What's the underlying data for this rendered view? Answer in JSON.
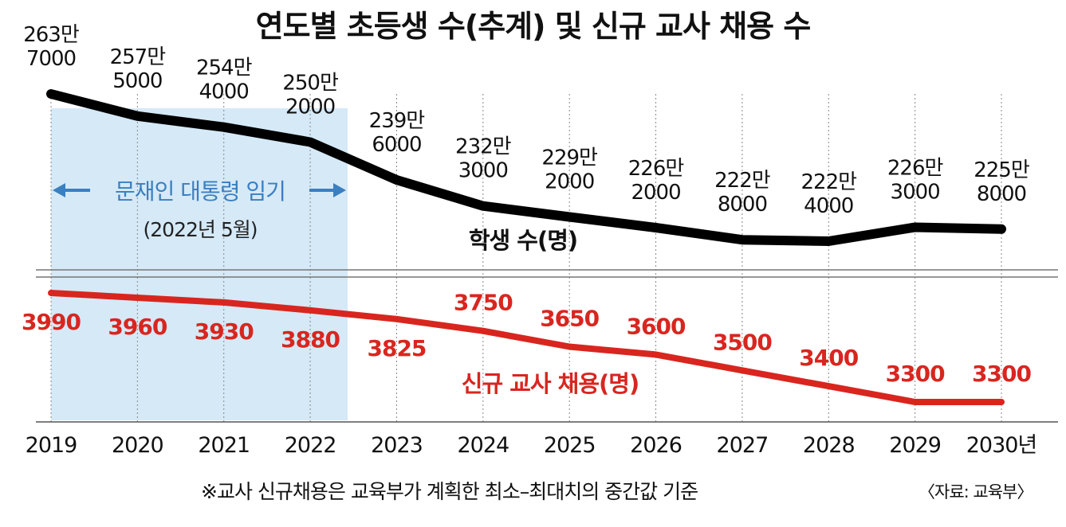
{
  "title": "연도별 초등생 수(추계) 및 신규 교사 채용 수",
  "x_unit_suffix": "년",
  "era": {
    "label": "문재인 대통령 임기",
    "sublabel": "(2022년 5월)",
    "fill_color": "#d5e9f7",
    "text_color": "#3a7fc0"
  },
  "footnote": "※교사 신규채용은 교육부가 계획한 최소–최대치의 중간값 기준",
  "source": "〈자료: 교육부〉",
  "chart_data": [
    {
      "type": "line",
      "title": "",
      "x": [
        "2019",
        "2020",
        "2021",
        "2022",
        "2023",
        "2024",
        "2025",
        "2026",
        "2027",
        "2028",
        "2029",
        "2030"
      ],
      "series": [
        {
          "name": "학생 수(명)",
          "color": "#000000",
          "values": [
            2637000,
            2575000,
            2544000,
            2502000,
            2396000,
            2323000,
            2292000,
            2262000,
            2228000,
            2224000,
            2263000,
            2258000
          ],
          "labels": [
            [
              "263만",
              "7000"
            ],
            [
              "257만",
              "5000"
            ],
            [
              "254만",
              "4000"
            ],
            [
              "250만",
              "2000"
            ],
            [
              "239만",
              "6000"
            ],
            [
              "232만",
              "3000"
            ],
            [
              "229만",
              "2000"
            ],
            [
              "226만",
              "2000"
            ],
            [
              "222만",
              "8000"
            ],
            [
              "222만",
              "4000"
            ],
            [
              "226만",
              "3000"
            ],
            [
              "225만",
              "8000"
            ]
          ]
        }
      ],
      "ylim": [
        2100000,
        2700000
      ],
      "legend": "in-plot"
    },
    {
      "type": "line",
      "title": "",
      "x": [
        "2019",
        "2020",
        "2021",
        "2022",
        "2023",
        "2024",
        "2025",
        "2026",
        "2027",
        "2028",
        "2029",
        "2030"
      ],
      "series": [
        {
          "name": "신규 교사 채용(명)",
          "color": "#d8261f",
          "values": [
            3990,
            3960,
            3930,
            3880,
            3825,
            3750,
            3650,
            3600,
            3500,
            3400,
            3300,
            3300
          ],
          "labels": [
            "3990",
            "3960",
            "3930",
            "3880",
            "3825",
            "3750",
            "3650",
            "3600",
            "3500",
            "3400",
            "3300",
            "3300"
          ]
        }
      ],
      "ylim": [
        3200,
        4100
      ],
      "legend": "in-plot"
    }
  ]
}
